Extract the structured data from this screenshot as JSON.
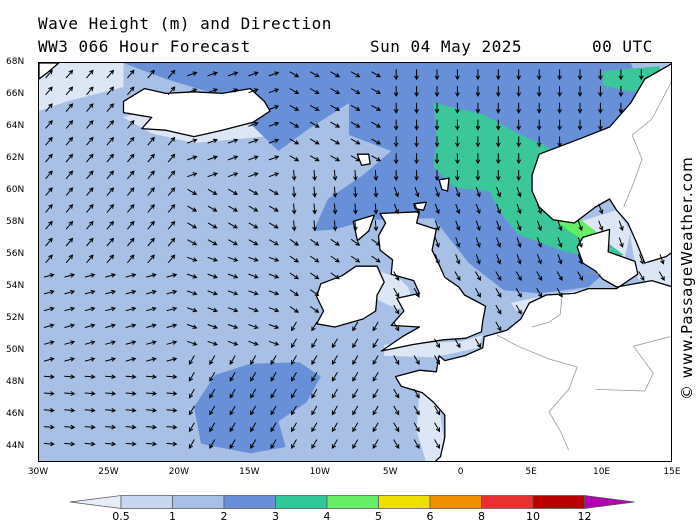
{
  "header": {
    "title": "Wave Height (m) and Direction",
    "model": "WW3 066 Hour Forecast",
    "date": "Sun 04 May 2025",
    "time": "00 UTC"
  },
  "credit": "© www.PassageWeather.com",
  "map": {
    "region": "North Atlantic / North Sea",
    "lat_labels": [
      "68N",
      "66N",
      "64N",
      "62N",
      "60N",
      "58N",
      "56N",
      "54N",
      "52N",
      "50N",
      "48N",
      "46N",
      "44N"
    ],
    "lon_labels": [
      "30W",
      "25W",
      "20W",
      "15W",
      "10W",
      "5W",
      "0",
      "5E",
      "10E",
      "15E"
    ],
    "lat_range": [
      43,
      68
    ],
    "lon_range": [
      -30,
      15
    ],
    "colors": {
      "land": "#ffffff",
      "under_0_5": "#ffffff",
      "0_5_to_1": "#dce6f5",
      "1_to_2": "#a8c0e6",
      "2_to_3": "#6890d8",
      "3_to_4": "#3cc79a",
      "4_to_5": "#66ee66"
    },
    "max_wave_m": 4.6
  },
  "legend": {
    "labels": [
      "0.5",
      "1",
      "2",
      "3",
      "4",
      "5",
      "6",
      "8",
      "10",
      "12"
    ],
    "colors": [
      "#e6ecf8",
      "#c8d6f0",
      "#a8c0e6",
      "#6890d8",
      "#30c898",
      "#66ee66",
      "#f0e000",
      "#f09000",
      "#e83030",
      "#b80000",
      "#b000b0"
    ],
    "unit": "m"
  }
}
